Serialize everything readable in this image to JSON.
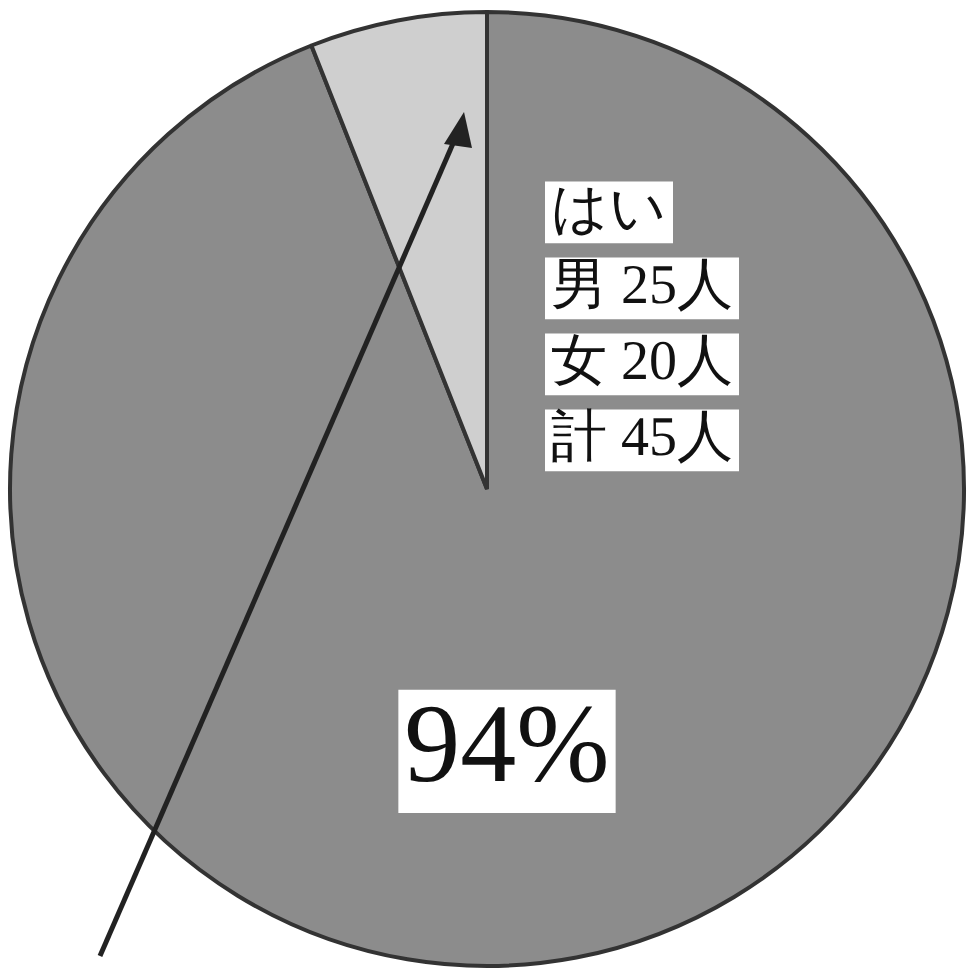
{
  "chart_data": {
    "type": "pie",
    "categories": [
      "はい",
      null
    ],
    "values": [
      94,
      6
    ],
    "colors": [
      "#8c8c8c",
      "#cfcfcf"
    ],
    "value_labels": [
      "94%",
      null
    ],
    "annotations": [
      "男 25人",
      "女 20人",
      "計 45人"
    ],
    "legend": false
  }
}
